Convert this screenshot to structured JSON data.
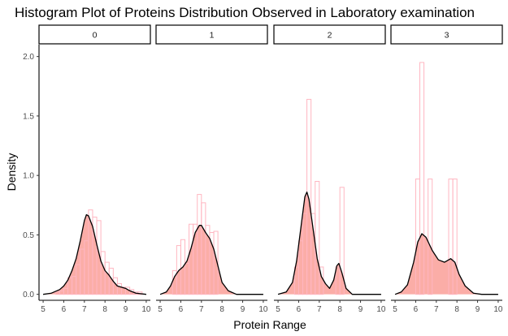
{
  "chart_data": {
    "type": "histogram-density-facets",
    "title": "Histogram Plot of Proteins Distribution Observed in Laboratory examination",
    "xlabel": "Protein Range",
    "ylabel": "Density",
    "xlim": [
      4.8,
      10.2
    ],
    "ylim": [
      -0.05,
      2.1
    ],
    "x_ticks": [
      5,
      6,
      7,
      8,
      9,
      10
    ],
    "y_ticks": [
      0.0,
      0.5,
      1.0,
      1.5,
      2.0
    ],
    "y_tick_labels": [
      "0.0",
      "0.5",
      "1.0",
      "1.5",
      "2.0"
    ],
    "bin_width": 0.2,
    "colors": {
      "fill": "#F8766D",
      "bar_outline": "#FFB6C1",
      "curve": "#000000",
      "axis": "#000000",
      "tick_text": "#4d4d4d"
    },
    "grid": false,
    "panels": [
      {
        "label": "0",
        "bins": [
          [
            5.6,
            0.02
          ],
          [
            5.8,
            0.03
          ],
          [
            6.0,
            0.05
          ],
          [
            6.2,
            0.14
          ],
          [
            6.4,
            0.15
          ],
          [
            6.6,
            0.25
          ],
          [
            6.8,
            0.38
          ],
          [
            7.0,
            0.45
          ],
          [
            7.2,
            0.71
          ],
          [
            7.4,
            0.65
          ],
          [
            7.6,
            0.62
          ],
          [
            7.8,
            0.36
          ],
          [
            8.0,
            0.27
          ],
          [
            8.2,
            0.22
          ],
          [
            8.4,
            0.14
          ],
          [
            8.6,
            0.09
          ],
          [
            8.8,
            0.06
          ],
          [
            9.0,
            0.06
          ],
          [
            9.2,
            0.04
          ],
          [
            9.4,
            0.02
          ],
          [
            9.6,
            0.02
          ]
        ],
        "density": [
          [
            5.0,
            0.0
          ],
          [
            5.4,
            0.01
          ],
          [
            5.8,
            0.04
          ],
          [
            6.0,
            0.07
          ],
          [
            6.2,
            0.12
          ],
          [
            6.4,
            0.2
          ],
          [
            6.6,
            0.3
          ],
          [
            6.8,
            0.45
          ],
          [
            7.0,
            0.62
          ],
          [
            7.1,
            0.67
          ],
          [
            7.2,
            0.66
          ],
          [
            7.4,
            0.57
          ],
          [
            7.6,
            0.42
          ],
          [
            7.8,
            0.28
          ],
          [
            8.0,
            0.2
          ],
          [
            8.2,
            0.16
          ],
          [
            8.4,
            0.11
          ],
          [
            8.6,
            0.07
          ],
          [
            8.8,
            0.06
          ],
          [
            9.0,
            0.05
          ],
          [
            9.2,
            0.03
          ],
          [
            9.5,
            0.01
          ],
          [
            10.0,
            0.0
          ]
        ]
      },
      {
        "label": "1",
        "bins": [
          [
            5.6,
            0.2
          ],
          [
            5.8,
            0.41
          ],
          [
            6.0,
            0.46
          ],
          [
            6.2,
            0.26
          ],
          [
            6.4,
            0.59
          ],
          [
            6.6,
            0.59
          ],
          [
            6.8,
            0.84
          ],
          [
            7.0,
            0.77
          ],
          [
            7.2,
            0.58
          ],
          [
            7.4,
            0.52
          ],
          [
            7.6,
            0.53
          ]
        ],
        "density": [
          [
            5.0,
            0.0
          ],
          [
            5.3,
            0.02
          ],
          [
            5.5,
            0.07
          ],
          [
            5.7,
            0.15
          ],
          [
            5.9,
            0.2
          ],
          [
            6.1,
            0.23
          ],
          [
            6.3,
            0.28
          ],
          [
            6.5,
            0.39
          ],
          [
            6.7,
            0.52
          ],
          [
            6.9,
            0.58
          ],
          [
            7.0,
            0.58
          ],
          [
            7.2,
            0.52
          ],
          [
            7.4,
            0.47
          ],
          [
            7.6,
            0.38
          ],
          [
            7.8,
            0.24
          ],
          [
            8.0,
            0.1
          ],
          [
            8.3,
            0.03
          ],
          [
            8.7,
            0.0
          ],
          [
            10.0,
            0.0
          ]
        ]
      },
      {
        "label": "2",
        "bins": [
          [
            5.8,
            0.23
          ],
          [
            6.0,
            0.45
          ],
          [
            6.2,
            0.68
          ],
          [
            6.4,
            1.64
          ],
          [
            6.6,
            0.68
          ],
          [
            6.8,
            0.95
          ],
          [
            7.0,
            0.23
          ],
          [
            7.8,
            0.23
          ],
          [
            8.0,
            0.9
          ]
        ],
        "density": [
          [
            5.0,
            0.0
          ],
          [
            5.4,
            0.02
          ],
          [
            5.7,
            0.1
          ],
          [
            5.9,
            0.28
          ],
          [
            6.1,
            0.55
          ],
          [
            6.3,
            0.82
          ],
          [
            6.4,
            0.86
          ],
          [
            6.5,
            0.8
          ],
          [
            6.7,
            0.55
          ],
          [
            6.9,
            0.3
          ],
          [
            7.1,
            0.15
          ],
          [
            7.3,
            0.09
          ],
          [
            7.5,
            0.05
          ],
          [
            7.7,
            0.12
          ],
          [
            7.85,
            0.24
          ],
          [
            7.95,
            0.26
          ],
          [
            8.1,
            0.18
          ],
          [
            8.3,
            0.05
          ],
          [
            8.6,
            0.0
          ],
          [
            10.0,
            0.0
          ]
        ]
      },
      {
        "label": "3",
        "bins": [
          [
            6.0,
            0.97
          ],
          [
            6.2,
            1.95
          ],
          [
            6.6,
            0.97
          ],
          [
            7.6,
            0.97
          ],
          [
            7.8,
            0.97
          ]
        ],
        "density": [
          [
            5.0,
            0.0
          ],
          [
            5.3,
            0.02
          ],
          [
            5.6,
            0.08
          ],
          [
            5.9,
            0.27
          ],
          [
            6.1,
            0.44
          ],
          [
            6.3,
            0.51
          ],
          [
            6.5,
            0.48
          ],
          [
            6.8,
            0.37
          ],
          [
            7.1,
            0.29
          ],
          [
            7.4,
            0.27
          ],
          [
            7.7,
            0.3
          ],
          [
            7.9,
            0.27
          ],
          [
            8.1,
            0.17
          ],
          [
            8.4,
            0.07
          ],
          [
            8.8,
            0.01
          ],
          [
            9.2,
            0.0
          ],
          [
            10.0,
            0.0
          ]
        ]
      }
    ]
  }
}
